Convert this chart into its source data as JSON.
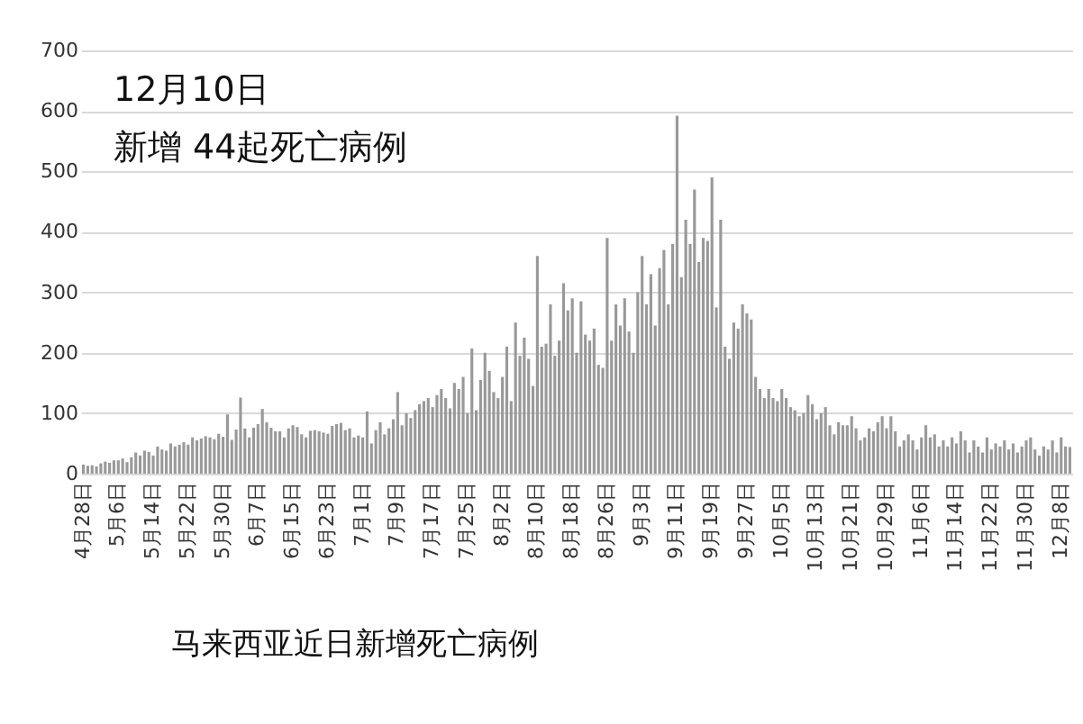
{
  "chart_data": {
    "type": "bar",
    "categories": [
      "4月28日",
      null,
      null,
      null,
      null,
      null,
      null,
      null,
      "5月6日",
      null,
      null,
      null,
      null,
      null,
      null,
      null,
      "5月14日",
      null,
      null,
      null,
      null,
      null,
      null,
      null,
      "5月22日",
      null,
      null,
      null,
      null,
      null,
      null,
      null,
      "5月30日",
      null,
      null,
      null,
      null,
      null,
      null,
      null,
      "6月7日",
      null,
      null,
      null,
      null,
      null,
      null,
      null,
      "6月15日",
      null,
      null,
      null,
      null,
      null,
      null,
      null,
      "6月23日",
      null,
      null,
      null,
      null,
      null,
      null,
      null,
      "7月1日",
      null,
      null,
      null,
      null,
      null,
      null,
      null,
      "7月9日",
      null,
      null,
      null,
      null,
      null,
      null,
      null,
      "7月17日",
      null,
      null,
      null,
      null,
      null,
      null,
      null,
      "7月25日",
      null,
      null,
      null,
      null,
      null,
      null,
      null,
      "8月2日",
      null,
      null,
      null,
      null,
      null,
      null,
      null,
      "8月10日",
      null,
      null,
      null,
      null,
      null,
      null,
      null,
      "8月18日",
      null,
      null,
      null,
      null,
      null,
      null,
      null,
      "8月26日",
      null,
      null,
      null,
      null,
      null,
      null,
      null,
      "9月3日",
      null,
      null,
      null,
      null,
      null,
      null,
      null,
      "9月11日",
      null,
      null,
      null,
      null,
      null,
      null,
      null,
      "9月19日",
      null,
      null,
      null,
      null,
      null,
      null,
      null,
      "9月27日",
      null,
      null,
      null,
      null,
      null,
      null,
      null,
      "10月5日",
      null,
      null,
      null,
      null,
      null,
      null,
      null,
      "10月13日",
      null,
      null,
      null,
      null,
      null,
      null,
      null,
      "10月21日",
      null,
      null,
      null,
      null,
      null,
      null,
      null,
      "10月29日",
      null,
      null,
      null,
      null,
      null,
      null,
      null,
      "11月6日",
      null,
      null,
      null,
      null,
      null,
      null,
      null,
      "11月14日",
      null,
      null,
      null,
      null,
      null,
      null,
      null,
      "11月22日",
      null,
      null,
      null,
      null,
      null,
      null,
      null,
      "11月30日",
      null,
      null,
      null,
      null,
      null,
      null,
      null,
      "12月8日",
      null,
      null
    ],
    "values": [
      15,
      13,
      14,
      12,
      17,
      20,
      18,
      22,
      22,
      25,
      19,
      27,
      35,
      30,
      38,
      36,
      30,
      45,
      40,
      38,
      50,
      45,
      48,
      52,
      48,
      60,
      55,
      58,
      62,
      60,
      57,
      66,
      61,
      98,
      56,
      73,
      126,
      75,
      60,
      76,
      82,
      107,
      85,
      76,
      70,
      70,
      60,
      75,
      80,
      77,
      65,
      60,
      71,
      72,
      70,
      68,
      66,
      79,
      82,
      84,
      72,
      75,
      60,
      63,
      60,
      103,
      50,
      72,
      85,
      65,
      75,
      90,
      135,
      80,
      100,
      92,
      105,
      115,
      120,
      125,
      110,
      130,
      140,
      125,
      108,
      150,
      140,
      160,
      100,
      207,
      105,
      155,
      200,
      170,
      135,
      125,
      160,
      210,
      120,
      250,
      195,
      225,
      190,
      145,
      360,
      210,
      215,
      280,
      195,
      220,
      315,
      270,
      290,
      200,
      285,
      230,
      220,
      240,
      180,
      175,
      390,
      220,
      280,
      245,
      290,
      235,
      200,
      300,
      360,
      280,
      330,
      245,
      340,
      370,
      280,
      380,
      592,
      325,
      420,
      380,
      470,
      350,
      390,
      385,
      490,
      275,
      420,
      210,
      190,
      250,
      240,
      280,
      265,
      255,
      160,
      140,
      125,
      140,
      125,
      120,
      140,
      125,
      110,
      105,
      95,
      100,
      130,
      115,
      90,
      100,
      110,
      80,
      65,
      85,
      80,
      80,
      95,
      75,
      55,
      60,
      75,
      70,
      85,
      95,
      75,
      95,
      70,
      45,
      55,
      65,
      55,
      40,
      60,
      80,
      60,
      65,
      45,
      55,
      45,
      60,
      50,
      70,
      55,
      35,
      55,
      45,
      35,
      60,
      40,
      50,
      45,
      55,
      40,
      50,
      35,
      45,
      55,
      60,
      40,
      30,
      45,
      40,
      55,
      35,
      60,
      45,
      44
    ],
    "color": "#999999",
    "ylim": [
      0,
      700
    ],
    "yticks": [
      0,
      100,
      200,
      300,
      400,
      500,
      600,
      700
    ],
    "grid": "y",
    "annotations": [
      "12月10日",
      "新增 44起死亡病例",
      "马来西亚近日新增死亡病例"
    ]
  }
}
